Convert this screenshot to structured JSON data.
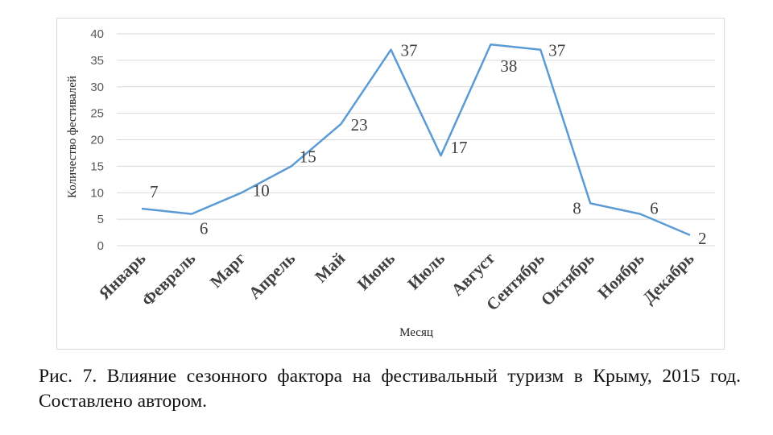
{
  "chart_data": {
    "type": "line",
    "categories": [
      "Январь",
      "Февраль",
      "Марг",
      "Апрель",
      "Май",
      "Июнь",
      "Июль",
      "Август",
      "Сентябрь",
      "Октябрь",
      "Ноябрь",
      "Декабрь"
    ],
    "values": [
      7,
      6,
      10,
      15,
      23,
      37,
      17,
      38,
      37,
      8,
      6,
      2
    ],
    "data_labels": [
      "7",
      "6",
      "10",
      "15",
      "23",
      "37",
      "17",
      "38",
      "37",
      "8",
      "6",
      "2"
    ],
    "xlabel": "Месяц",
    "ylabel": "Количество фестивалей",
    "ylim": [
      0,
      40
    ],
    "yticks": [
      "0",
      "5",
      "10",
      "15",
      "20",
      "25",
      "30",
      "35",
      "40"
    ],
    "grid": "horizontal",
    "legend": "none",
    "line_color": "#5b9bd5",
    "grid_color": "#d9d9d9"
  },
  "caption": "Рис. 7. Влияние сезонного фактора на фестивальный туризм в Крыму, 2015 год. Составлено автором."
}
